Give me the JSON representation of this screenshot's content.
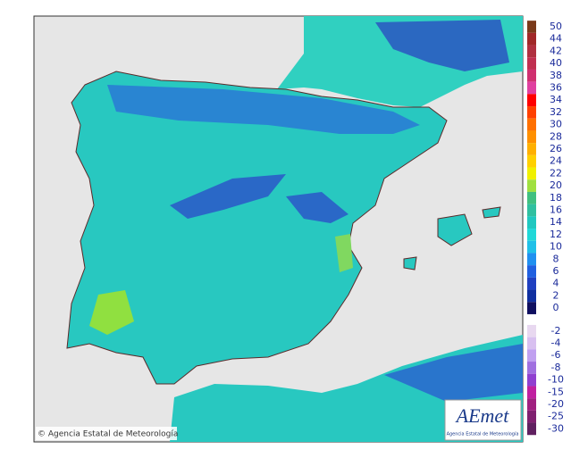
{
  "map": {
    "credit": "© Agencia Estatal de Meteorología",
    "logo": {
      "name": "AEmet",
      "subtitle": "Agencia Estatal de Meteorología"
    },
    "legend": [
      {
        "value": 50,
        "color": "#7a3a1a"
      },
      {
        "value": 44,
        "color": "#a02828"
      },
      {
        "value": 42,
        "color": "#b03040"
      },
      {
        "value": 40,
        "color": "#c03050"
      },
      {
        "value": 38,
        "color": "#d03070"
      },
      {
        "value": 36,
        "color": "#e040a0"
      },
      {
        "value": 34,
        "color": "#ff0000"
      },
      {
        "value": 32,
        "color": "#ff4000"
      },
      {
        "value": 30,
        "color": "#ff7000"
      },
      {
        "value": 28,
        "color": "#ff9000"
      },
      {
        "value": 26,
        "color": "#ffb000"
      },
      {
        "value": 24,
        "color": "#ffd000"
      },
      {
        "value": 22,
        "color": "#f0f000"
      },
      {
        "value": 20,
        "color": "#a0e040"
      },
      {
        "value": 18,
        "color": "#40c080"
      },
      {
        "value": 16,
        "color": "#30c0a0"
      },
      {
        "value": 14,
        "color": "#20c8c0"
      },
      {
        "value": 12,
        "color": "#20d8d8"
      },
      {
        "value": 10,
        "color": "#20c0e8"
      },
      {
        "value": 8,
        "color": "#2090f0"
      },
      {
        "value": 6,
        "color": "#2060e0"
      },
      {
        "value": 4,
        "color": "#2040c0"
      },
      {
        "value": 2,
        "color": "#1030a0"
      },
      {
        "value": 0,
        "color": "#101060"
      },
      {
        "value": -2,
        "color": "#e8d8f0"
      },
      {
        "value": -4,
        "color": "#d8c0f0"
      },
      {
        "value": -6,
        "color": "#c0a0f0"
      },
      {
        "value": -8,
        "color": "#a070e0"
      },
      {
        "value": -10,
        "color": "#9040d0"
      },
      {
        "value": -15,
        "color": "#c020a0"
      },
      {
        "value": -20,
        "color": "#a02080"
      },
      {
        "value": -25,
        "color": "#802070"
      },
      {
        "value": -30,
        "color": "#602060"
      }
    ]
  }
}
